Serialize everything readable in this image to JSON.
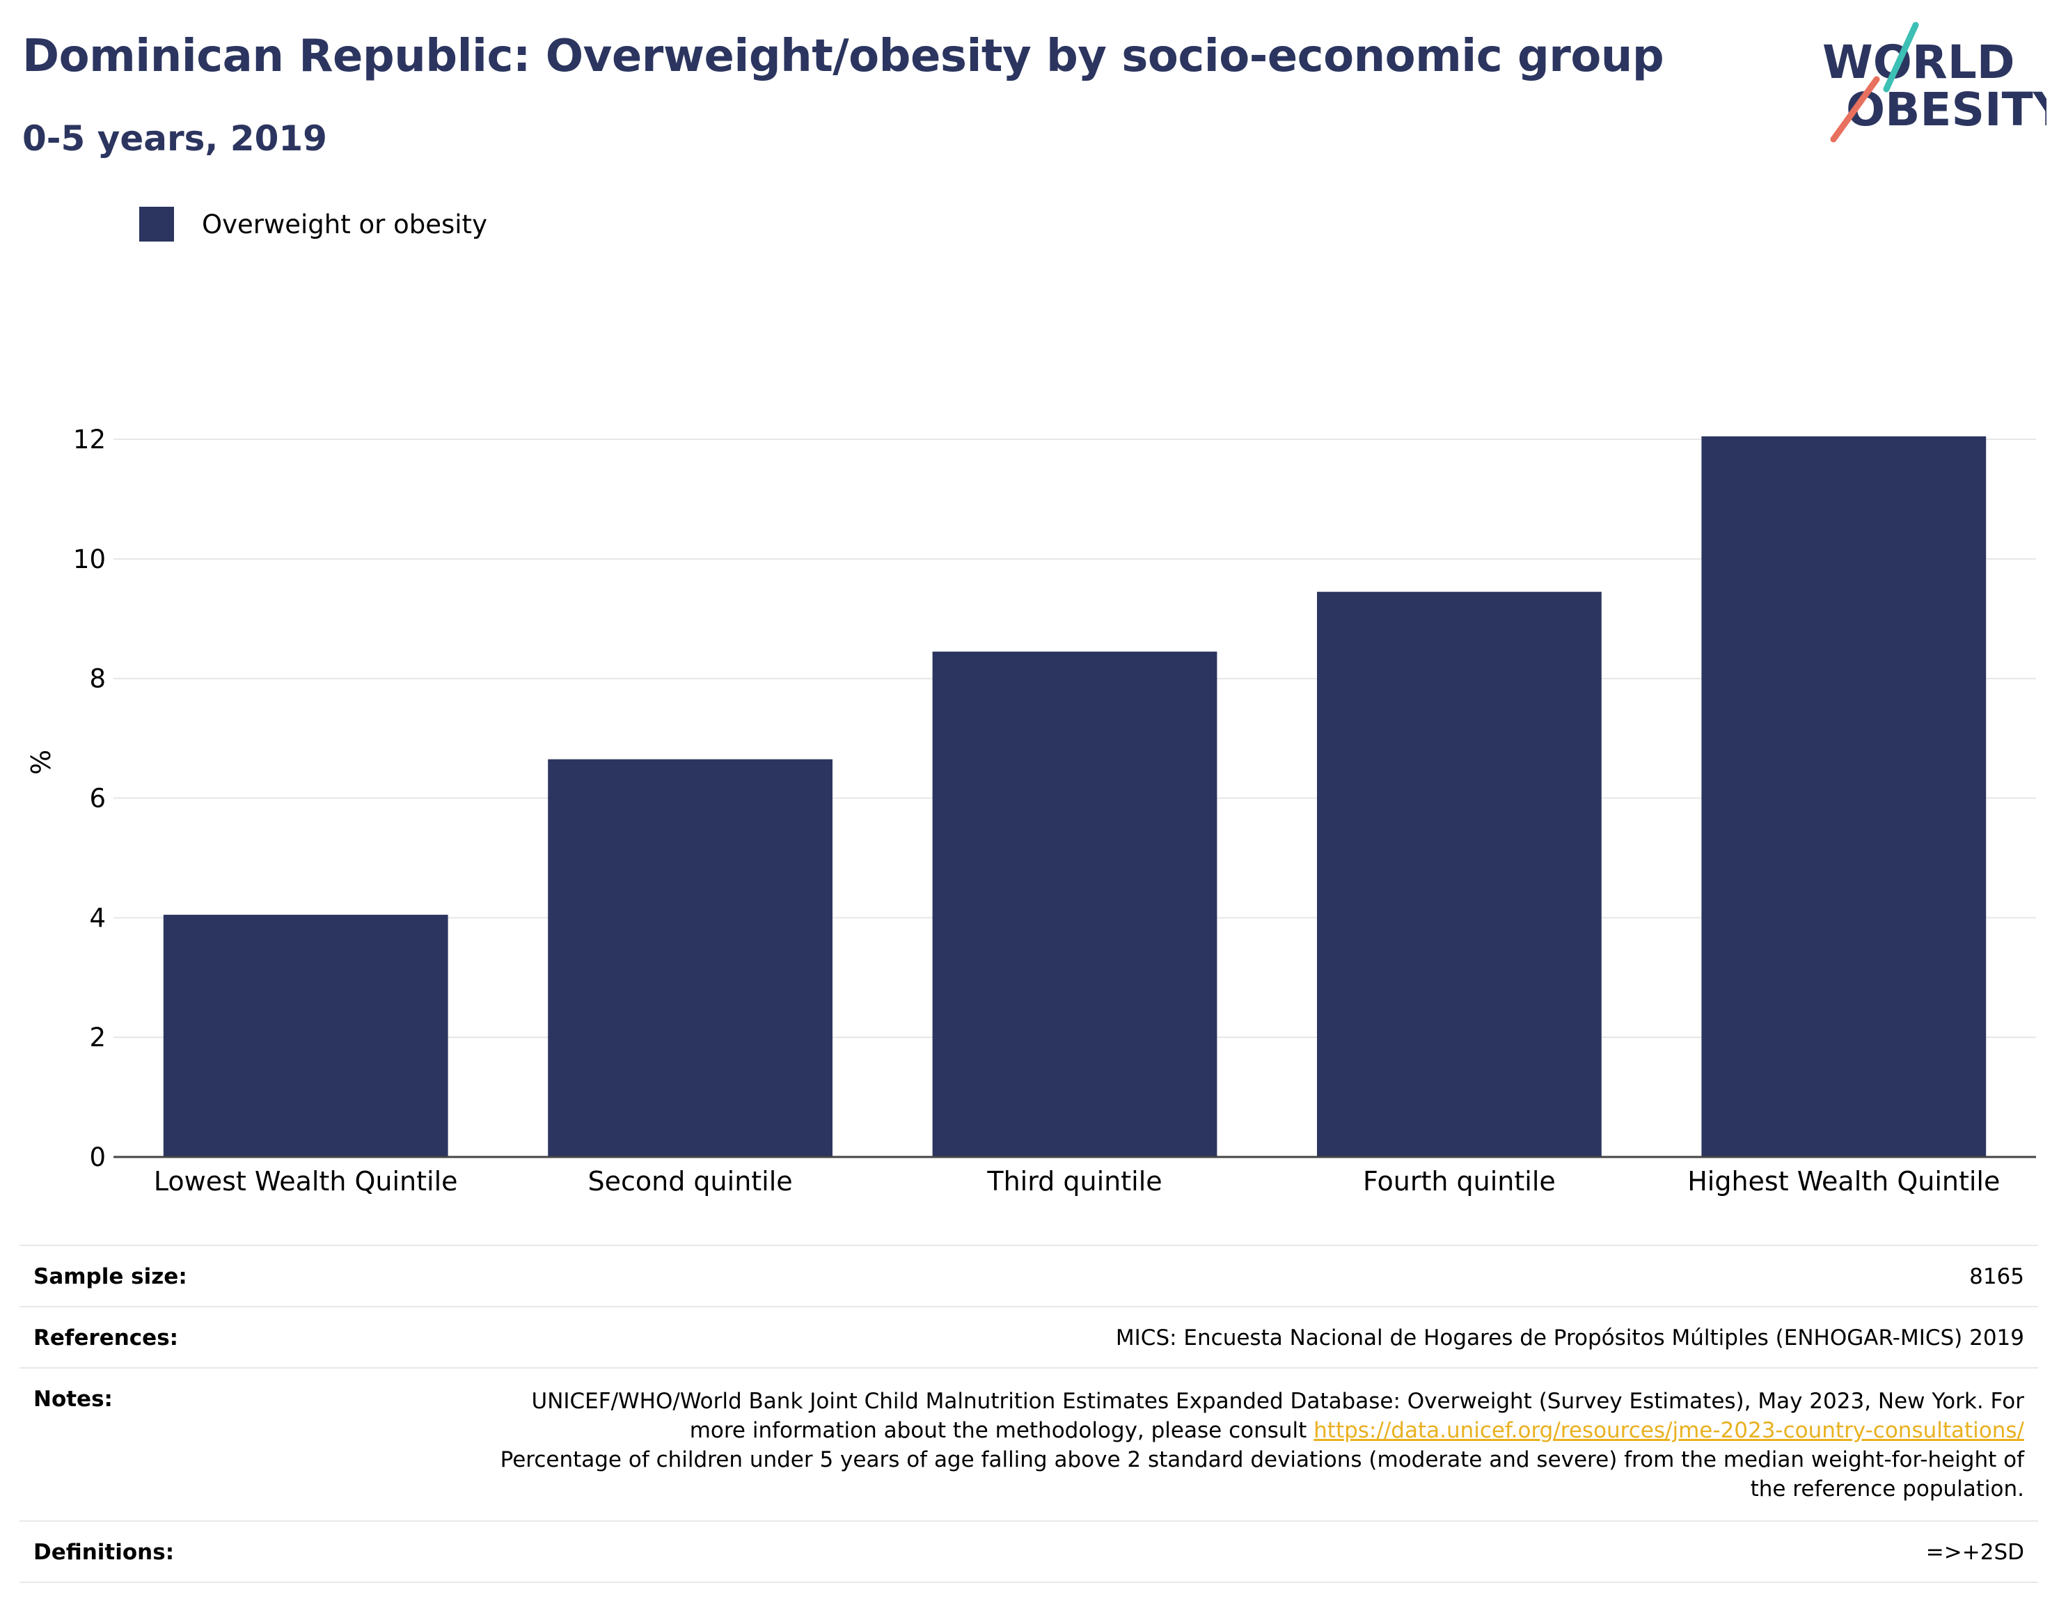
{
  "header": {
    "title": "Dominican Republic: Overweight/obesity by socio-economic group",
    "subtitle": "0-5 years, 2019"
  },
  "logo": {
    "line1": "WORLD",
    "line2": "OBESITY",
    "colors": {
      "text": "#2b355f",
      "accent_teal": "#3cbfb4",
      "accent_coral": "#e8705e"
    }
  },
  "legend": {
    "label": "Overweight or obesity",
    "color": "#2b355f"
  },
  "chart_data": {
    "type": "bar",
    "categories": [
      "Lowest Wealth Quintile",
      "Second quintile",
      "Third quintile",
      "Fourth quintile",
      "Highest Wealth Quintile"
    ],
    "series": [
      {
        "name": "Overweight or obesity",
        "values": [
          4.05,
          6.65,
          8.45,
          9.45,
          12.05
        ],
        "color": "#2b355f"
      }
    ],
    "title": "Dominican Republic: Overweight/obesity by socio-economic group",
    "subtitle": "0-5 years, 2019",
    "xlabel": "",
    "ylabel": "%",
    "ylim": [
      0,
      13.2
    ],
    "yticks": [
      0,
      2,
      4,
      6,
      8,
      10,
      12
    ],
    "grid": true,
    "legend_position": "top-left"
  },
  "footer": {
    "sample_size": {
      "label": "Sample size:",
      "value": "8165"
    },
    "references": {
      "label": "References:",
      "value": "MICS: Encuesta Nacional de Hogares de Propósitos Múltiples (ENHOGAR-MICS) 2019"
    },
    "notes": {
      "label": "Notes:",
      "text_before": "UNICEF/WHO/World Bank Joint Child Malnutrition Estimates Expanded Database: Overweight (Survey Estimates), May 2023, New York. For more information about the methodology, please consult ",
      "link": "https://data.unicef.org/resources/jme-2023-country-consultations/",
      "text_after": "Percentage of children under 5 years of age falling above 2 standard deviations (moderate and severe) from the median weight-for-height of the reference population."
    },
    "definitions": {
      "label": "Definitions:",
      "value": "=>+2SD"
    }
  }
}
